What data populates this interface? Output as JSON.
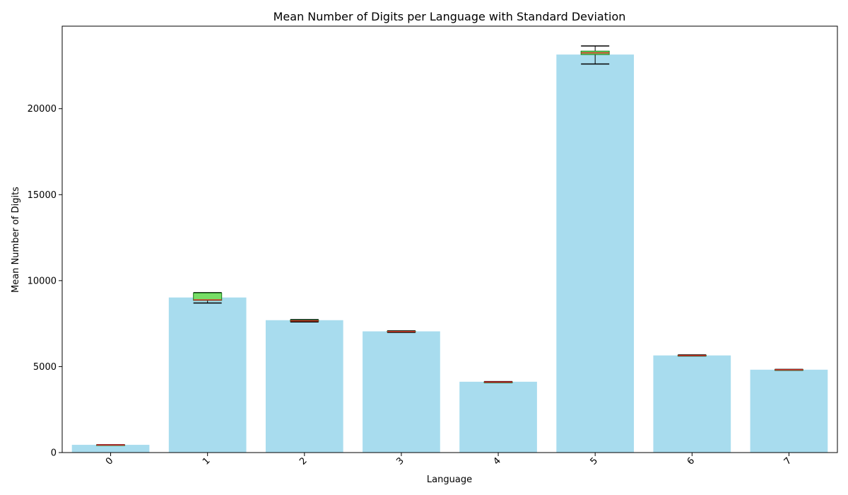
{
  "chart_data": {
    "type": "bar",
    "title": "Mean Number of Digits per Language with Standard Deviation",
    "xlabel": "Language",
    "ylabel": "Mean Number of Digits",
    "categories": [
      "0",
      "1",
      "2",
      "3",
      "4",
      "5",
      "6",
      "7"
    ],
    "values": [
      450,
      9020,
      7700,
      7050,
      4120,
      23150,
      5650,
      4820
    ],
    "ylim": [
      0,
      24800
    ],
    "yticks": [
      0,
      5000,
      10000,
      15000,
      20000
    ],
    "ytick_labels": [
      "0",
      "5000",
      "10000",
      "15000",
      "20000"
    ],
    "grid": false,
    "bar_color": "#a8dcee",
    "box_color": "#77dd66",
    "median_color": "#d62728",
    "boxes": [
      {
        "whisker_low": 420,
        "q1": 430,
        "median": 440,
        "q3": 450,
        "whisker_high": 460
      },
      {
        "whisker_low": 8700,
        "q1": 8850,
        "median": 8880,
        "q3": 9280,
        "whisker_high": 9300
      },
      {
        "whisker_low": 7600,
        "q1": 7640,
        "median": 7660,
        "q3": 7700,
        "whisker_high": 7730
      },
      {
        "whisker_low": 6990,
        "q1": 7020,
        "median": 7040,
        "q3": 7060,
        "whisker_high": 7080
      },
      {
        "whisker_low": 4070,
        "q1": 4090,
        "median": 4100,
        "q3": 4110,
        "whisker_high": 4130
      },
      {
        "whisker_low": 22600,
        "q1": 23150,
        "median": 23250,
        "q3": 23350,
        "whisker_high": 23650
      },
      {
        "whisker_low": 5620,
        "q1": 5640,
        "median": 5650,
        "q3": 5660,
        "whisker_high": 5680
      },
      {
        "whisker_low": 4790,
        "q1": 4805,
        "median": 4815,
        "q3": 4825,
        "whisker_high": 4840
      }
    ]
  }
}
